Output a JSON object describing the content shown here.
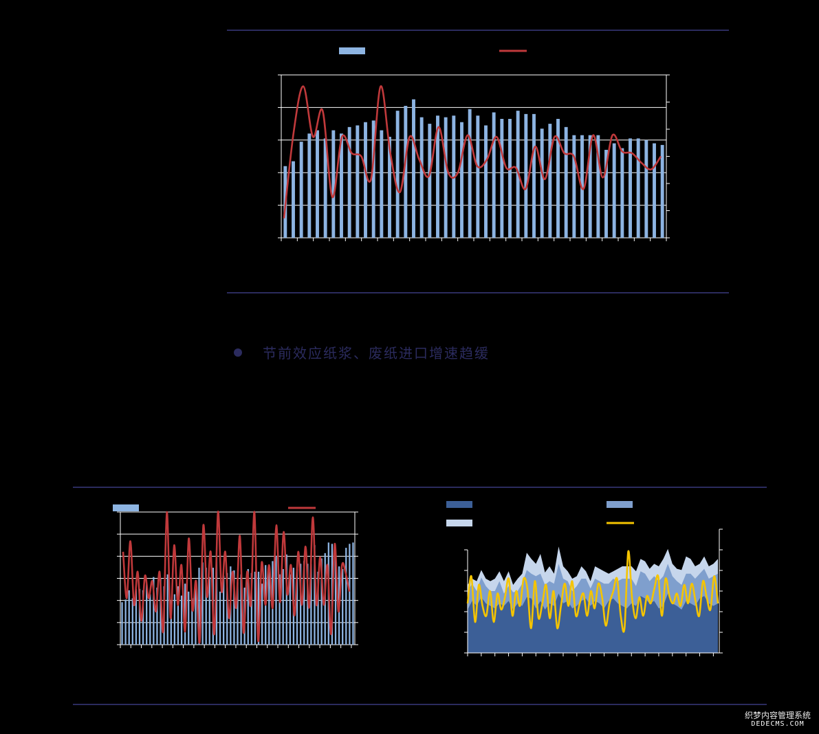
{
  "colors": {
    "rule": "#2b2b5e",
    "bar_light_blue": "#8db4e2",
    "line_red": "#c0393b",
    "area_dark": "#3c5f97",
    "area_mid": "#7f9fcd",
    "area_light": "#c6d6ec",
    "line_yellow": "#f5c400",
    "axis": "#ffffff"
  },
  "section_heading": "节前效应纸浆、废纸进口增速趋缓",
  "watermark": {
    "cn": "织梦内容管理系统",
    "en": "DEDECMS.COM"
  },
  "chart_data": [
    {
      "type": "bar",
      "id": "top",
      "ylim": [
        0,
        100
      ],
      "y2lim": [
        0,
        100
      ],
      "grid": true,
      "legend": "top",
      "series": [
        {
          "kind": "bar",
          "axis": "left",
          "values": [
            44,
            47,
            59,
            64,
            66,
            61,
            66,
            64,
            68,
            69,
            71,
            72,
            66,
            62,
            78,
            81,
            85,
            74,
            70,
            75,
            74,
            75,
            71,
            79,
            75,
            69,
            77,
            73,
            73,
            78,
            76,
            76,
            67,
            70,
            73,
            68,
            63,
            63,
            63,
            63,
            54,
            58,
            55,
            61,
            61,
            60,
            58,
            57
          ]
        },
        {
          "kind": "line",
          "axis": "right",
          "values": [
            12,
            65,
            93,
            62,
            78,
            25,
            62,
            52,
            50,
            36,
            93,
            52,
            28,
            62,
            48,
            38,
            68,
            40,
            40,
            63,
            44,
            48,
            62,
            43,
            43,
            30,
            56,
            36,
            62,
            52,
            50,
            30,
            63,
            37,
            63,
            53,
            52,
            46,
            42,
            50
          ]
        }
      ]
    },
    {
      "type": "bar",
      "id": "bottom-left",
      "ylim": [
        0,
        100
      ],
      "y2lim": [
        0,
        100
      ],
      "grid": true,
      "legend": "top",
      "series": [
        {
          "kind": "bar",
          "axis": "left",
          "values": [
            32,
            34,
            41,
            35,
            42,
            42,
            41,
            46,
            38,
            51,
            43,
            50,
            44,
            53,
            33,
            38,
            44,
            37,
            46,
            40,
            35,
            47,
            58,
            62,
            58,
            51,
            58,
            66,
            40,
            52,
            54,
            59,
            56,
            47,
            53,
            43,
            57,
            54,
            55,
            55,
            46,
            60,
            55,
            63,
            67,
            53,
            57,
            68,
            53,
            58,
            57,
            61,
            63,
            61,
            61,
            75,
            55,
            65,
            69,
            77,
            76,
            68,
            59,
            57,
            73,
            76,
            77
          ]
        },
        {
          "kind": "line",
          "axis": "right",
          "values": [
            70,
            35,
            78,
            30,
            55,
            18,
            52,
            35,
            48,
            25,
            55,
            10,
            100,
            20,
            75,
            30,
            60,
            10,
            80,
            26,
            48,
            2,
            90,
            36,
            70,
            8,
            100,
            40,
            70,
            20,
            55,
            28,
            82,
            9,
            55,
            30,
            100,
            3,
            62,
            30,
            60,
            28,
            90,
            32,
            85,
            38,
            60,
            22,
            70,
            30,
            74,
            28,
            96,
            30,
            66,
            30,
            60,
            8,
            76,
            25,
            60,
            54,
            40
          ]
        }
      ]
    },
    {
      "type": "area",
      "id": "bottom-right",
      "ylim": [
        0,
        100
      ],
      "y2lim": [
        0,
        100
      ],
      "grid": false,
      "legend": "top",
      "series": [
        {
          "kind": "area",
          "axis": "left",
          "values": [
            35,
            42,
            38,
            45,
            40,
            38,
            36,
            40,
            38,
            42,
            35,
            40,
            38,
            45,
            44,
            36,
            42,
            35,
            40,
            38,
            48,
            40,
            42,
            36,
            38,
            42,
            44,
            38,
            42,
            40,
            36,
            42,
            44,
            40,
            38,
            36,
            40,
            38,
            46,
            44,
            40,
            42,
            36,
            38,
            48,
            40,
            38,
            35,
            42,
            40,
            38,
            44,
            46,
            40,
            38,
            40
          ]
        },
        {
          "kind": "area",
          "axis": "left",
          "values": [
            15,
            14,
            12,
            16,
            14,
            12,
            14,
            18,
            10,
            12,
            14,
            10,
            18,
            22,
            20,
            26,
            22,
            20,
            18,
            18,
            24,
            20,
            16,
            14,
            16,
            18,
            16,
            14,
            18,
            18,
            20,
            14,
            16,
            18,
            22,
            24,
            20,
            16,
            20,
            20,
            18,
            20,
            22,
            24,
            24,
            22,
            20,
            20,
            22,
            24,
            22,
            20,
            22,
            20,
            24,
            24
          ]
        },
        {
          "kind": "area",
          "axis": "left",
          "values": [
            5,
            4,
            8,
            6,
            6,
            8,
            10,
            8,
            10,
            12,
            6,
            10,
            8,
            14,
            12,
            10,
            16,
            10,
            12,
            8,
            14,
            10,
            8,
            10,
            8,
            10,
            6,
            6,
            10,
            10,
            10,
            8,
            6,
            10,
            10,
            10,
            10,
            12,
            10,
            10,
            10,
            10,
            12,
            14,
            12,
            10,
            10,
            12,
            14,
            12,
            10,
            8,
            10,
            10,
            10,
            12
          ]
        },
        {
          "kind": "line",
          "axis": "right",
          "values": [
            40,
            62,
            25,
            55,
            38,
            30,
            50,
            25,
            48,
            35,
            45,
            60,
            30,
            50,
            38,
            60,
            52,
            20,
            58,
            28,
            40,
            55,
            28,
            50,
            20,
            38,
            56,
            38,
            58,
            30,
            40,
            48,
            30,
            50,
            36,
            56,
            45,
            22,
            40,
            50,
            60,
            30,
            20,
            82,
            45,
            28,
            45,
            30,
            46,
            40,
            52,
            62,
            30,
            60,
            46,
            40,
            48,
            38,
            55,
            40,
            56,
            42,
            30,
            58,
            45,
            35,
            62,
            40
          ]
        }
      ]
    }
  ]
}
